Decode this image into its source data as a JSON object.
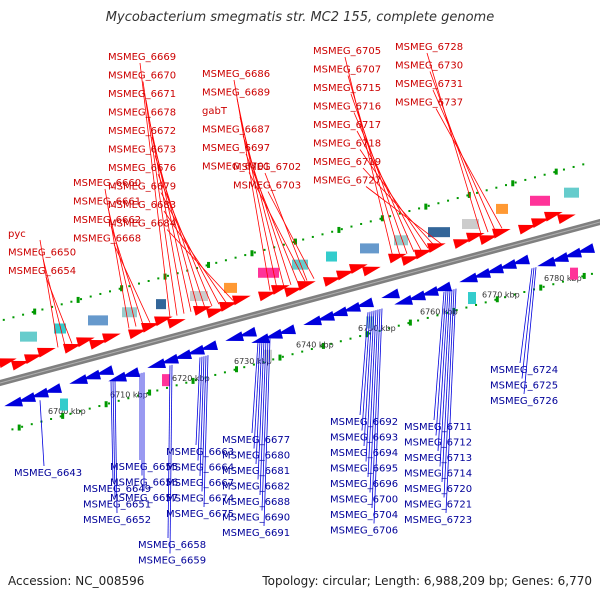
{
  "title": "Mycobacterium smegmatis str. MC2 155, complete genome",
  "footer": {
    "accession": "Accession: NC_008596",
    "summary": "Topology: circular; Length: 6,988,209 bp; Genes: 6,770"
  },
  "colors": {
    "forward": "#ff0000",
    "reverse": "#0000dd",
    "forward_label": "#cc0000",
    "reverse_label": "#000099",
    "backbone": "#808080",
    "tick": "#009900"
  },
  "scale": {
    "ticks": [
      {
        "label": "6700 kbp"
      },
      {
        "label": "6710 kbp"
      },
      {
        "label": "6720 kbp"
      },
      {
        "label": "6730 kbp"
      },
      {
        "label": "6740 kbp"
      },
      {
        "label": "6750 kbp"
      },
      {
        "label": "6760 kbp"
      },
      {
        "label": "6770 kbp"
      },
      {
        "label": "6780 kbp"
      }
    ]
  },
  "forward_genes": [
    "pyc",
    "MSMEG_6650",
    "MSMEG_6654",
    "MSMEG_6660",
    "MSMEG_6661",
    "MSMEG_6662",
    "MSMEG_6668",
    "MSMEG_6669",
    "MSMEG_6670",
    "MSMEG_6671",
    "MSMEG_6678",
    "MSMEG_6672",
    "MSMEG_6673",
    "MSMEG_6676",
    "MSMEG_6679",
    "MSMEG_6683",
    "MSMEG_6684",
    "MSMEG_6686",
    "MSMEG_6689",
    "gabT",
    "MSMEG_6687",
    "MSMEG_6697",
    "MSMEG_6701",
    "MSMEG_6702",
    "MSMEG_6703",
    "MSMEG_6705",
    "MSMEG_6707",
    "MSMEG_6715",
    "MSMEG_6716",
    "MSMEG_6717",
    "MSMEG_6718",
    "MSMEG_6719",
    "MSMEG_6727",
    "MSMEG_6728",
    "MSMEG_6730",
    "MSMEG_6731",
    "MSMEG_6737"
  ],
  "reverse_genes": [
    "MSMEG_6643",
    "MSMEG_6649",
    "MSMEG_6651",
    "MSMEG_6652",
    "MSMEG_6655",
    "MSMEG_6656",
    "MSMEG_6657",
    "MSMEG_6658",
    "MSMEG_6659",
    "MSMEG_6663",
    "MSMEG_6664",
    "MSMEG_6667",
    "MSMEG_6674",
    "MSMEG_6675",
    "MSMEG_6677",
    "MSMEG_6680",
    "MSMEG_6681",
    "MSMEG_6682",
    "MSMEG_6688",
    "MSMEG_6690",
    "MSMEG_6691",
    "MSMEG_6692",
    "MSMEG_6693",
    "MSMEG_6694",
    "MSMEG_6695",
    "MSMEG_6696",
    "MSMEG_6700",
    "MSMEG_6704",
    "MSMEG_6706",
    "MSMEG_6711",
    "MSMEG_6712",
    "MSMEG_6713",
    "MSMEG_6714",
    "MSMEG_6720",
    "MSMEG_6721",
    "MSMEG_6723",
    "MSMEG_6724",
    "MSMEG_6725",
    "MSMEG_6726"
  ]
}
